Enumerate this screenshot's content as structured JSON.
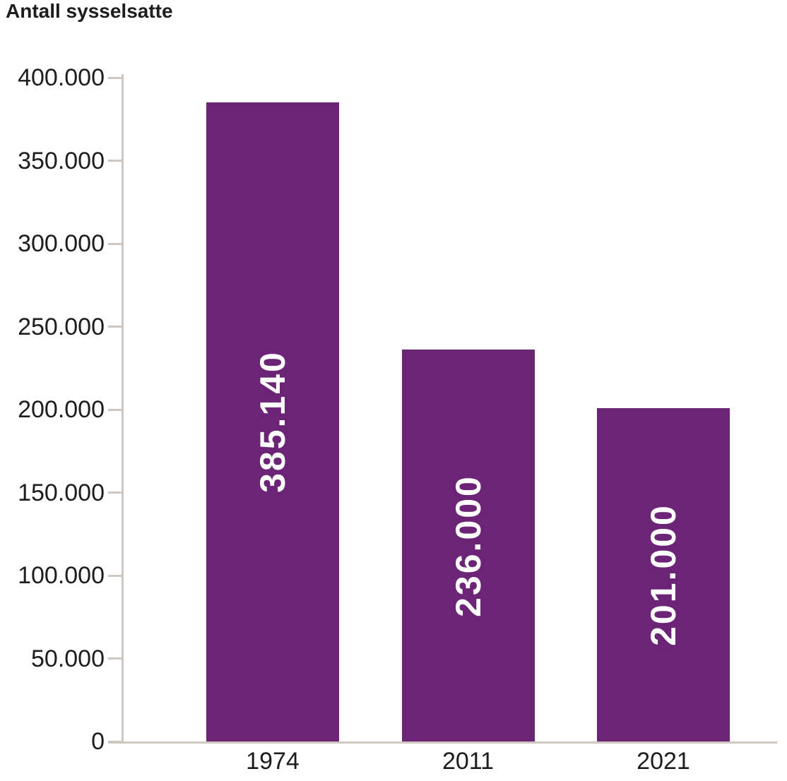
{
  "chart_data": {
    "type": "bar",
    "title": "Antall sysselsatte",
    "categories": [
      "1974",
      "2011",
      "2021"
    ],
    "values": [
      385140,
      236000,
      201000
    ],
    "value_labels": [
      "385.140",
      "236.000",
      "201.000"
    ],
    "xlabel": "",
    "ylabel": "Antall sysselsatte",
    "ylim": [
      0,
      400000
    ],
    "ytick_step": 50000,
    "ytick_labels": [
      "0",
      "50.000",
      "100.000",
      "150.000",
      "200.000",
      "250.000",
      "300.000",
      "350.000",
      "400.000"
    ],
    "grid": false,
    "legend": "none",
    "bar_color": "#6c2476",
    "value_label_color": "#ffffff",
    "axis_color": "#cfc8c0",
    "text_color": "#1d1d1b"
  }
}
